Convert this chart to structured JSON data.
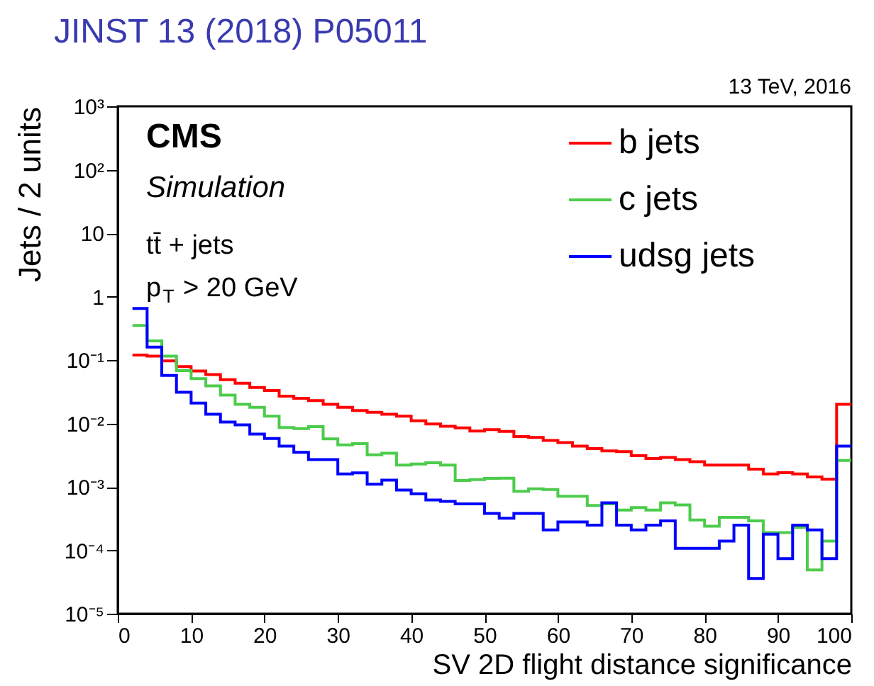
{
  "chart_data": {
    "type": "histogram",
    "xlabel": "SV 2D flight distance significance",
    "ylabel": "Jets / 2 units",
    "annotations": [
      "JINST 13 (2018) P05011",
      "13 TeV, 2016",
      "CMS",
      "Simulation",
      "tt̄ + jets",
      "p$_{T}$ > 20 GeV"
    ],
    "bins": [
      2,
      4,
      6,
      8,
      10,
      12,
      14,
      16,
      18,
      20,
      22,
      24,
      26,
      28,
      30,
      32,
      34,
      36,
      38,
      40,
      42,
      44,
      46,
      48,
      50,
      52,
      54,
      56,
      58,
      60,
      62,
      64,
      66,
      68,
      70,
      72,
      74,
      76,
      78,
      80,
      82,
      84,
      86,
      88,
      90,
      92,
      94,
      96,
      98,
      100
    ],
    "series": [
      {
        "name": "b jets",
        "color": "#ff0000",
        "values": [
          0.12,
          0.115,
          0.097,
          0.079,
          0.067,
          0.059,
          0.049,
          0.043,
          0.037,
          0.033,
          0.027,
          0.025,
          0.023,
          0.02,
          0.018,
          0.016,
          0.015,
          0.014,
          0.013,
          0.011,
          0.0098,
          0.009,
          0.0085,
          0.0076,
          0.008,
          0.0075,
          0.0062,
          0.006,
          0.0054,
          0.005,
          0.0044,
          0.004,
          0.0037,
          0.0036,
          0.0031,
          0.0028,
          0.0029,
          0.0027,
          0.0025,
          0.0022,
          0.0022,
          0.0022,
          0.0019,
          0.0016,
          0.00167,
          0.0016,
          0.00143,
          0.00132,
          0.02
        ]
      },
      {
        "name": "c jets",
        "color": "#4ccc4c",
        "values": [
          0.35,
          0.2,
          0.115,
          0.068,
          0.051,
          0.039,
          0.028,
          0.02,
          0.018,
          0.013,
          0.0086,
          0.0083,
          0.0089,
          0.0057,
          0.0046,
          0.0048,
          0.0032,
          0.0034,
          0.0022,
          0.0023,
          0.0024,
          0.0022,
          0.00126,
          0.0013,
          0.00136,
          0.00137,
          0.00085,
          0.00093,
          0.00091,
          0.00071,
          0.00071,
          0.00051,
          0.00054,
          0.00043,
          0.00047,
          0.00043,
          0.00056,
          0.00052,
          0.0003,
          0.00024,
          0.00033,
          0.00033,
          0.00029,
          0.00019,
          0.00019,
          0.00023,
          4.9e-05,
          0.00014,
          0.0026
        ]
      },
      {
        "name": "udsg jets",
        "color": "#0000ff",
        "values": [
          0.65,
          0.16,
          0.057,
          0.031,
          0.021,
          0.014,
          0.0105,
          0.0095,
          0.0068,
          0.0058,
          0.0044,
          0.0035,
          0.0027,
          0.0027,
          0.0016,
          0.00166,
          0.0011,
          0.00128,
          0.00089,
          0.00078,
          0.00062,
          0.00059,
          0.00054,
          0.00054,
          0.00038,
          0.00032,
          0.00038,
          0.00038,
          0.00021,
          0.00028,
          0.00028,
          0.00025,
          0.00056,
          0.00025,
          0.00021,
          0.00025,
          0.00029,
          0.000107,
          0.000107,
          0.000107,
          0.00014,
          0.00025,
          3.6e-05,
          0.00018,
          7.4e-05,
          0.00025,
          0.00021,
          7.4e-05,
          0.0044
        ]
      }
    ],
    "xlim": [
      0,
      100
    ],
    "xticks": [
      0,
      10,
      20,
      30,
      40,
      50,
      60,
      70,
      80,
      90,
      100
    ],
    "ylim": [
      1e-05,
      1000
    ],
    "log": true,
    "yticks": [
      {
        "value": 1e-05,
        "label": "10⁻⁵"
      },
      {
        "value": 0.0001,
        "label": "10⁻⁴"
      },
      {
        "value": 0.001,
        "label": "10⁻³"
      },
      {
        "value": 0.01,
        "label": "10⁻²"
      },
      {
        "value": 0.1,
        "label": "10⁻¹"
      },
      1,
      10,
      {
        "value": 100,
        "label": "10²"
      },
      {
        "value": 1000,
        "label": "10³"
      }
    ],
    "grid": false,
    "legend": "top right",
    "line_style": "solid"
  }
}
